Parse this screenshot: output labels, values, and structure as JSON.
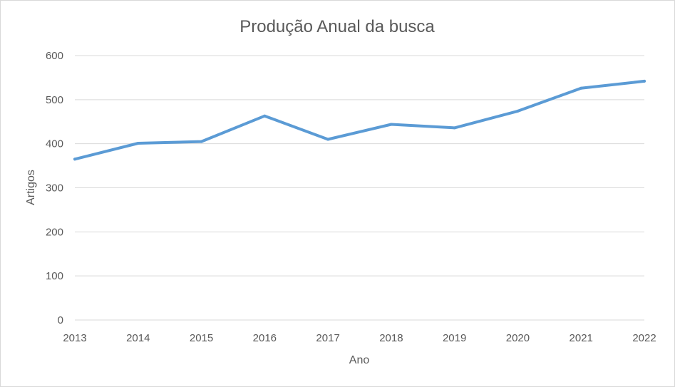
{
  "chart_data": {
    "type": "line",
    "title": "Produção Anual da busca",
    "xlabel": "Ano",
    "ylabel": "Artigos",
    "categories": [
      "2013",
      "2014",
      "2015",
      "2016",
      "2017",
      "2018",
      "2019",
      "2020",
      "2021",
      "2022"
    ],
    "series": [
      {
        "values": [
          365,
          401,
          405,
          463,
          410,
          444,
          436,
          474,
          526,
          542
        ],
        "color": "#5b9bd5"
      }
    ],
    "ylim": [
      0,
      600
    ],
    "yticks": [
      "0",
      "100",
      "200",
      "300",
      "400",
      "500",
      "600"
    ],
    "grid": true,
    "legend": "none"
  }
}
